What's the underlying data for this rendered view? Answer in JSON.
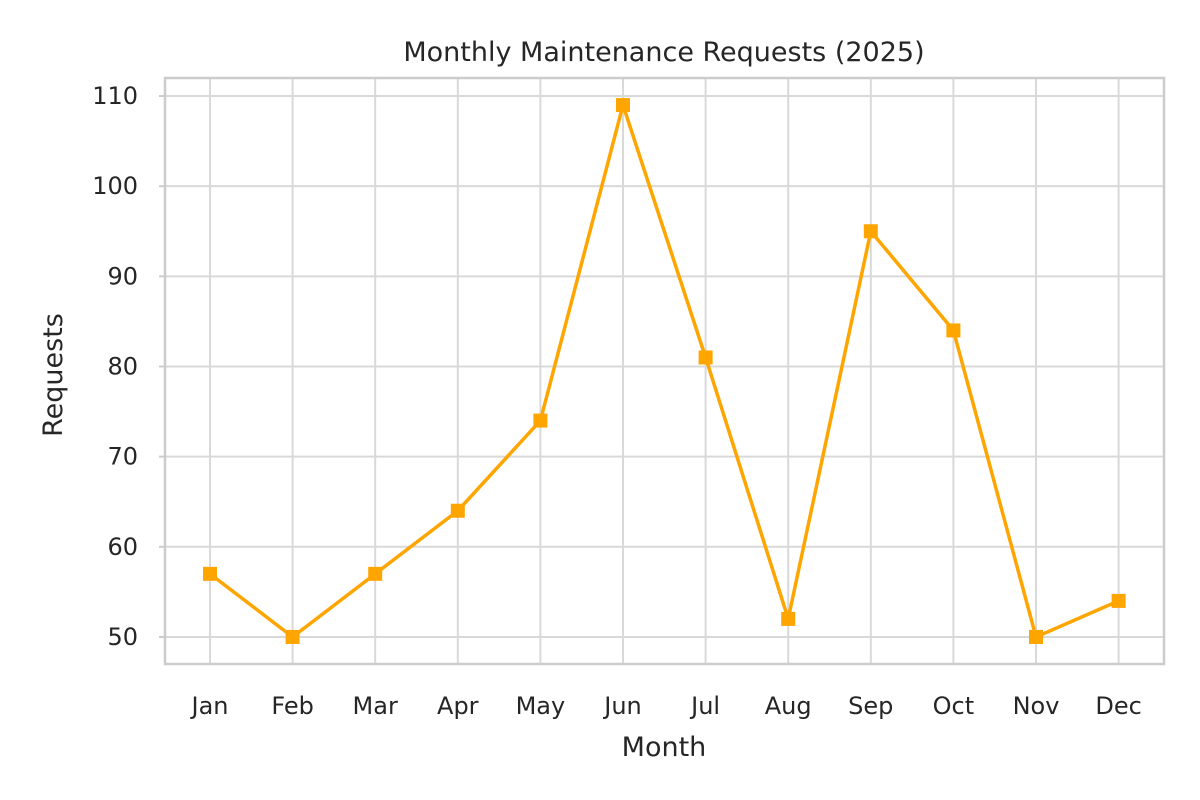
{
  "chart_data": {
    "type": "line",
    "title": "Monthly Maintenance Requests (2025)",
    "xlabel": "Month",
    "ylabel": "Requests",
    "categories": [
      "Jan",
      "Feb",
      "Mar",
      "Apr",
      "May",
      "Jun",
      "Jul",
      "Aug",
      "Sep",
      "Oct",
      "Nov",
      "Dec"
    ],
    "series": [
      {
        "values": [
          57,
          50,
          57,
          64,
          74,
          109,
          81,
          52,
          95,
          84,
          50,
          54
        ],
        "color": "#FFA500",
        "marker": "square"
      }
    ],
    "ylim": [
      47,
      112
    ],
    "yticks": [
      50,
      60,
      70,
      80,
      90,
      100,
      110
    ],
    "grid": true,
    "legend": "none"
  }
}
